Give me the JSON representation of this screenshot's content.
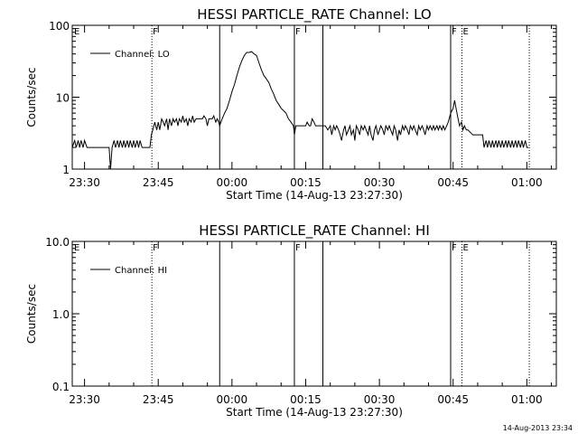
{
  "timestamp": "14-Aug-2013 23:34",
  "chart_data": [
    {
      "type": "line",
      "title": "HESSI PARTICLE_RATE Channel: LO",
      "xlabel": "Start Time (14-Aug-13 23:27:30)",
      "ylabel": "Counts/sec",
      "yscale": "log",
      "ylim": [
        1,
        100
      ],
      "yticks": [
        1,
        10,
        100
      ],
      "ytick_labels": [
        "1",
        "10",
        "100"
      ],
      "xlim_minutes_since_2330": [
        -2.5,
        96
      ],
      "xticks_minutes_since_2330": [
        0,
        15,
        30,
        45,
        60,
        75,
        90
      ],
      "xtick_labels": [
        "23:30",
        "23:45",
        "00:00",
        "00:15",
        "00:30",
        "00:45",
        "01:00"
      ],
      "legend": [
        "Channel: LO"
      ],
      "legend_position": "top-left",
      "markers": [
        {
          "t": 13.7,
          "style": "dotted",
          "label": "F"
        },
        {
          "t": 27.5,
          "style": "solid",
          "label": ""
        },
        {
          "t": 42.7,
          "style": "solid",
          "label": "F"
        },
        {
          "t": 48.5,
          "style": "solid",
          "label": ""
        },
        {
          "t": 74.5,
          "style": "solid",
          "label": "F"
        },
        {
          "t": 76.8,
          "style": "dotted",
          "label": "E"
        },
        {
          "t": 90.5,
          "style": "dotted",
          "label": ""
        }
      ],
      "edge_labels": [
        {
          "position": "left",
          "label": "E"
        }
      ],
      "series": [
        {
          "name": "Channel: LO",
          "points": [
            [
              -2.5,
              2
            ],
            [
              -2,
              2.5
            ],
            [
              -1.7,
              2
            ],
            [
              -1.3,
              2.5
            ],
            [
              -1,
              2
            ],
            [
              -0.7,
              2.5
            ],
            [
              -0.3,
              2
            ],
            [
              0,
              2.5
            ],
            [
              0.5,
              2
            ],
            [
              5,
              2
            ],
            [
              5.3,
              1
            ],
            [
              5.6,
              2
            ],
            [
              6,
              2.5
            ],
            [
              6.3,
              2
            ],
            [
              6.7,
              2.5
            ],
            [
              7,
              2
            ],
            [
              7.3,
              2.5
            ],
            [
              7.7,
              2
            ],
            [
              8,
              2.5
            ],
            [
              8.3,
              2
            ],
            [
              8.7,
              2.5
            ],
            [
              9,
              2
            ],
            [
              9.3,
              2.5
            ],
            [
              9.7,
              2
            ],
            [
              10,
              2.5
            ],
            [
              10.3,
              2
            ],
            [
              10.7,
              2.5
            ],
            [
              11,
              2
            ],
            [
              11.3,
              2.5
            ],
            [
              11.7,
              2
            ],
            [
              13.3,
              2
            ],
            [
              13.6,
              3
            ],
            [
              13.9,
              3.5
            ],
            [
              14.3,
              4.5
            ],
            [
              14.7,
              3.5
            ],
            [
              15,
              4.5
            ],
            [
              15.3,
              3.5
            ],
            [
              15.7,
              5
            ],
            [
              16,
              4.5
            ],
            [
              16.3,
              4
            ],
            [
              16.7,
              5
            ],
            [
              17,
              3.5
            ],
            [
              17.3,
              5
            ],
            [
              17.7,
              4
            ],
            [
              18,
              5
            ],
            [
              18.3,
              4.5
            ],
            [
              18.7,
              5
            ],
            [
              19,
              4
            ],
            [
              19.3,
              5
            ],
            [
              19.7,
              4.5
            ],
            [
              20,
              5.5
            ],
            [
              20.3,
              4.5
            ],
            [
              20.7,
              5
            ],
            [
              21,
              4
            ],
            [
              21.3,
              5
            ],
            [
              21.7,
              4.5
            ],
            [
              22,
              5.5
            ],
            [
              22.3,
              4.5
            ],
            [
              22.7,
              5
            ],
            [
              23,
              5
            ],
            [
              23.3,
              5
            ],
            [
              23.7,
              5
            ],
            [
              24,
              5
            ],
            [
              24.3,
              5.5
            ],
            [
              24.7,
              5
            ],
            [
              25,
              4
            ],
            [
              25.3,
              5
            ],
            [
              25.7,
              5
            ],
            [
              26,
              5
            ],
            [
              26.3,
              5.5
            ],
            [
              26.7,
              4.5
            ],
            [
              27,
              5
            ],
            [
              27.3,
              4.5
            ],
            [
              27.5,
              4
            ],
            [
              28,
              5
            ],
            [
              28.5,
              6
            ],
            [
              29,
              7
            ],
            [
              29.5,
              9
            ],
            [
              30,
              12
            ],
            [
              30.5,
              15
            ],
            [
              31,
              20
            ],
            [
              31.5,
              26
            ],
            [
              32,
              32
            ],
            [
              32.5,
              38
            ],
            [
              33,
              42
            ],
            [
              33.5,
              42
            ],
            [
              34,
              43
            ],
            [
              34.5,
              40
            ],
            [
              35,
              38
            ],
            [
              35.5,
              30
            ],
            [
              36,
              24
            ],
            [
              36.5,
              20
            ],
            [
              37,
              18
            ],
            [
              37.5,
              16
            ],
            [
              38,
              13
            ],
            [
              38.5,
              11
            ],
            [
              39,
              9
            ],
            [
              39.5,
              8
            ],
            [
              40,
              7
            ],
            [
              40.5,
              6.5
            ],
            [
              41,
              6
            ],
            [
              41.5,
              5
            ],
            [
              42,
              4.5
            ],
            [
              42.5,
              4
            ],
            [
              42.7,
              3
            ],
            [
              43,
              4
            ],
            [
              44,
              4
            ],
            [
              45,
              4
            ],
            [
              45.3,
              4.5
            ],
            [
              45.7,
              4
            ],
            [
              46,
              4
            ],
            [
              46.3,
              5
            ],
            [
              46.7,
              4.5
            ],
            [
              47,
              4
            ],
            [
              47.5,
              4
            ],
            [
              48.5,
              4
            ],
            [
              49,
              4
            ],
            [
              49.5,
              3.5
            ],
            [
              50,
              4
            ],
            [
              50.3,
              3
            ],
            [
              50.7,
              4
            ],
            [
              51,
              3.5
            ],
            [
              51.3,
              4
            ],
            [
              51.7,
              3.5
            ],
            [
              52,
              3
            ],
            [
              52.3,
              2.5
            ],
            [
              52.7,
              3.5
            ],
            [
              53,
              4
            ],
            [
              53.3,
              3
            ],
            [
              53.7,
              3.5
            ],
            [
              54,
              4
            ],
            [
              54.3,
              3
            ],
            [
              54.7,
              3.5
            ],
            [
              55,
              2.5
            ],
            [
              55.3,
              4
            ],
            [
              55.7,
              3.5
            ],
            [
              56,
              3
            ],
            [
              56.3,
              4
            ],
            [
              56.7,
              3.5
            ],
            [
              57,
              4
            ],
            [
              57.3,
              3.5
            ],
            [
              57.7,
              3
            ],
            [
              58,
              4
            ],
            [
              58.3,
              3
            ],
            [
              58.7,
              2.5
            ],
            [
              59,
              3.5
            ],
            [
              59.3,
              4
            ],
            [
              59.7,
              3
            ],
            [
              60,
              3.5
            ],
            [
              60.3,
              4
            ],
            [
              60.7,
              3.5
            ],
            [
              61,
              3
            ],
            [
              61.3,
              4
            ],
            [
              61.7,
              3.5
            ],
            [
              62,
              4
            ],
            [
              62.3,
              3.5
            ],
            [
              62.7,
              3
            ],
            [
              63,
              4
            ],
            [
              63.3,
              3.5
            ],
            [
              63.7,
              2.5
            ],
            [
              64,
              3.5
            ],
            [
              64.3,
              3
            ],
            [
              64.7,
              4
            ],
            [
              65,
              3.5
            ],
            [
              65.3,
              4
            ],
            [
              65.7,
              3.5
            ],
            [
              66,
              3
            ],
            [
              66.3,
              4
            ],
            [
              66.7,
              3.5
            ],
            [
              67,
              4
            ],
            [
              67.3,
              3.5
            ],
            [
              67.7,
              3
            ],
            [
              68,
              4
            ],
            [
              68.3,
              3.5
            ],
            [
              68.7,
              4
            ],
            [
              69,
              3.5
            ],
            [
              69.3,
              3
            ],
            [
              69.7,
              4
            ],
            [
              70,
              3.5
            ],
            [
              70.3,
              4
            ],
            [
              70.7,
              3.5
            ],
            [
              71,
              4
            ],
            [
              71.3,
              3.5
            ],
            [
              71.7,
              4
            ],
            [
              72,
              3.5
            ],
            [
              72.3,
              4
            ],
            [
              72.7,
              3.5
            ],
            [
              73,
              4
            ],
            [
              73.3,
              3.5
            ],
            [
              73.7,
              4
            ],
            [
              74,
              4.5
            ],
            [
              74.5,
              6
            ],
            [
              75,
              7
            ],
            [
              75.3,
              9
            ],
            [
              75.6,
              7
            ],
            [
              76,
              5
            ],
            [
              76.3,
              4
            ],
            [
              76.7,
              4.5
            ],
            [
              77,
              3.5
            ],
            [
              77.3,
              4
            ],
            [
              77.7,
              3.5
            ],
            [
              78,
              3.5
            ],
            [
              79,
              3
            ],
            [
              80,
              3
            ],
            [
              81,
              3
            ],
            [
              81.3,
              2
            ],
            [
              81.7,
              2.5
            ],
            [
              82,
              2
            ],
            [
              82.3,
              2.5
            ],
            [
              82.7,
              2
            ],
            [
              83,
              2.5
            ],
            [
              83.3,
              2
            ],
            [
              83.7,
              2.5
            ],
            [
              84,
              2
            ],
            [
              84.3,
              2.5
            ],
            [
              84.7,
              2
            ],
            [
              85,
              2.5
            ],
            [
              85.3,
              2
            ],
            [
              85.7,
              2.5
            ],
            [
              86,
              2
            ],
            [
              86.3,
              2.5
            ],
            [
              86.7,
              2
            ],
            [
              87,
              2.5
            ],
            [
              87.3,
              2
            ],
            [
              87.7,
              2.5
            ],
            [
              88,
              2
            ],
            [
              88.3,
              2.5
            ],
            [
              88.7,
              2
            ],
            [
              89,
              2.5
            ],
            [
              89.3,
              2
            ],
            [
              89.7,
              2.5
            ],
            [
              90,
              2
            ],
            [
              90.3,
              2
            ]
          ]
        }
      ]
    },
    {
      "type": "line",
      "title": "HESSI PARTICLE_RATE Channel: HI",
      "xlabel": "Start Time (14-Aug-13 23:27:30)",
      "ylabel": "Counts/sec",
      "yscale": "log",
      "ylim": [
        0.1,
        10
      ],
      "yticks": [
        0.1,
        1,
        10
      ],
      "ytick_labels": [
        "0.1",
        "1.0",
        "10.0"
      ],
      "xlim_minutes_since_2330": [
        -2.5,
        96
      ],
      "xticks_minutes_since_2330": [
        0,
        15,
        30,
        45,
        60,
        75,
        90
      ],
      "xtick_labels": [
        "23:30",
        "23:45",
        "00:00",
        "00:15",
        "00:30",
        "00:45",
        "01:00"
      ],
      "legend": [
        "Channel: HI"
      ],
      "legend_position": "top-left",
      "markers": [
        {
          "t": 13.7,
          "style": "dotted",
          "label": "F"
        },
        {
          "t": 27.5,
          "style": "solid",
          "label": ""
        },
        {
          "t": 42.7,
          "style": "solid",
          "label": "F"
        },
        {
          "t": 48.5,
          "style": "solid",
          "label": ""
        },
        {
          "t": 74.5,
          "style": "solid",
          "label": "F"
        },
        {
          "t": 76.8,
          "style": "dotted",
          "label": "E"
        },
        {
          "t": 90.5,
          "style": "dotted",
          "label": ""
        }
      ],
      "edge_labels": [
        {
          "position": "left",
          "label": "E"
        }
      ],
      "series": [
        {
          "name": "Channel: HI",
          "points": []
        }
      ]
    }
  ]
}
